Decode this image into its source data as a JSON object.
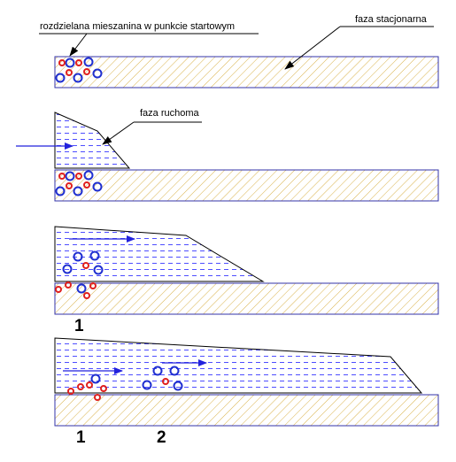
{
  "labels": {
    "start_mixture": "rozdzielana mieszanina w punkcie startowym",
    "stationary_phase": "faza stacjonarna",
    "mobile_phase": "faza ruchoma"
  },
  "numbers": {
    "spot_1_panel3": "1",
    "spot_1_panel4": "1",
    "spot_2_panel4": "2"
  },
  "colors": {
    "hatch": "#d9b24a",
    "plate_border": "#3333aa",
    "mobile_dash": "#3a3aff",
    "arrow": "#2222dd",
    "blue_particle": "#1f2fd0",
    "red_particle": "#e0201e",
    "leader_line": "#000000"
  }
}
